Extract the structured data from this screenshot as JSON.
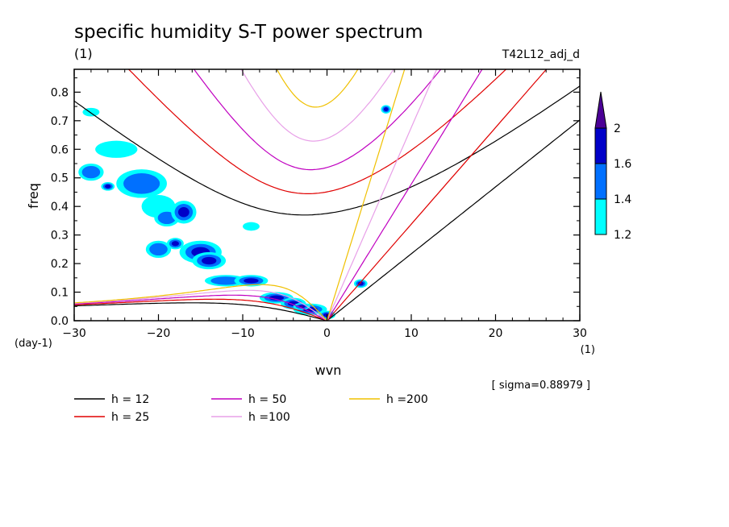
{
  "chart_data": {
    "type": "heatmap",
    "title": "specific humidity S-T power spectrum",
    "units_label": "(1)",
    "run_label": "T42L12_adj_d",
    "xlabel": "wvn",
    "ylabel": "freq",
    "x_unit": "(1)",
    "y_unit": "(day-1)",
    "xlim": [
      -30,
      30
    ],
    "ylim": [
      0,
      0.88
    ],
    "xticks": [
      -30,
      -20,
      -10,
      0,
      10,
      20,
      30
    ],
    "yticks": [
      0.0,
      0.1,
      0.2,
      0.3,
      0.4,
      0.5,
      0.6,
      0.7,
      0.8
    ],
    "sigma_label": "[ sigma=0.88979 ]",
    "colorbar": {
      "levels": [
        1.2,
        1.4,
        1.6,
        2
      ],
      "colors": [
        "#00ffff",
        "#0070ff",
        "#0000c8",
        "#4b0096"
      ]
    },
    "dispersion_curves": [
      {
        "label": "h = 12",
        "h": 12,
        "color": "#000000"
      },
      {
        "label": "h = 25",
        "h": 25,
        "color": "#e00000"
      },
      {
        "label": "h = 50",
        "h": 50,
        "color": "#c000c0"
      },
      {
        "label": "h =100",
        "h": 100,
        "color": "#e8a0e8"
      },
      {
        "label": "h =200",
        "h": 200,
        "color": "#f0c000"
      }
    ],
    "peak_regions": [
      {
        "k": -28,
        "f": 0.52,
        "rx": 1.5,
        "ry": 0.03,
        "level": 2
      },
      {
        "k": -25,
        "f": 0.6,
        "rx": 2.5,
        "ry": 0.03,
        "level": 1
      },
      {
        "k": -22,
        "f": 0.48,
        "rx": 3.0,
        "ry": 0.05,
        "level": 2
      },
      {
        "k": -20,
        "f": 0.4,
        "rx": 2.0,
        "ry": 0.04,
        "level": 1
      },
      {
        "k": -19,
        "f": 0.36,
        "rx": 1.5,
        "ry": 0.03,
        "level": 2
      },
      {
        "k": -17,
        "f": 0.38,
        "rx": 1.5,
        "ry": 0.04,
        "level": 3
      },
      {
        "k": -20,
        "f": 0.25,
        "rx": 1.5,
        "ry": 0.03,
        "level": 2
      },
      {
        "k": -15,
        "f": 0.24,
        "rx": 2.5,
        "ry": 0.04,
        "level": 3
      },
      {
        "k": -14,
        "f": 0.21,
        "rx": 2.0,
        "ry": 0.03,
        "level": 3
      },
      {
        "k": -12,
        "f": 0.14,
        "rx": 2.5,
        "ry": 0.02,
        "level": 2
      },
      {
        "k": -9,
        "f": 0.14,
        "rx": 2.0,
        "ry": 0.02,
        "level": 3
      },
      {
        "k": -6,
        "f": 0.08,
        "rx": 2.0,
        "ry": 0.02,
        "level": 3
      },
      {
        "k": -4,
        "f": 0.06,
        "rx": 1.5,
        "ry": 0.02,
        "level": 3
      },
      {
        "k": -2,
        "f": 0.04,
        "rx": 2.0,
        "ry": 0.02,
        "level": 4
      },
      {
        "k": 0,
        "f": 0.02,
        "rx": 1.0,
        "ry": 0.015,
        "level": 4
      },
      {
        "k": 4,
        "f": 0.13,
        "rx": 0.8,
        "ry": 0.015,
        "level": 4
      },
      {
        "k": 7,
        "f": 0.74,
        "rx": 0.6,
        "ry": 0.015,
        "level": 3
      },
      {
        "k": -9,
        "f": 0.33,
        "rx": 1.0,
        "ry": 0.015,
        "level": 1
      },
      {
        "k": -28,
        "f": 0.73,
        "rx": 1.0,
        "ry": 0.015,
        "level": 1
      },
      {
        "k": -26,
        "f": 0.47,
        "rx": 0.8,
        "ry": 0.015,
        "level": 3
      },
      {
        "k": -3,
        "f": 0.05,
        "rx": 1.0,
        "ry": 0.012,
        "level": 4
      },
      {
        "k": -18,
        "f": 0.27,
        "rx": 1.0,
        "ry": 0.02,
        "level": 3
      }
    ]
  }
}
